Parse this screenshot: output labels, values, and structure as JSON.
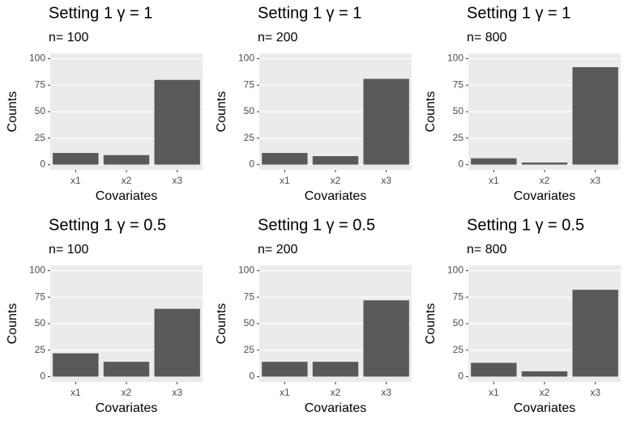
{
  "chart_data": [
    {
      "type": "bar",
      "title": "Setting 1 γ = 1",
      "subtitle": "n= 100",
      "x_label": "Covariates",
      "y_label": "Counts",
      "categories": [
        "x1",
        "x2",
        "x3"
      ],
      "values": [
        11,
        9,
        80
      ],
      "color": "#595959",
      "ylim": [
        -5,
        105
      ],
      "yticks": [
        0,
        25,
        50,
        75,
        100
      ],
      "grid": true
    },
    {
      "type": "bar",
      "title": "Setting 1 γ = 1",
      "subtitle": "n= 200",
      "x_label": "Covariates",
      "y_label": "Counts",
      "categories": [
        "x1",
        "x2",
        "x3"
      ],
      "values": [
        11,
        8,
        81
      ],
      "color": "#595959",
      "ylim": [
        -5,
        105
      ],
      "yticks": [
        0,
        25,
        50,
        75,
        100
      ],
      "grid": true
    },
    {
      "type": "bar",
      "title": "Setting 1 γ = 1",
      "subtitle": "n= 800",
      "x_label": "Covariates",
      "y_label": "Counts",
      "categories": [
        "x1",
        "x2",
        "x3"
      ],
      "values": [
        6,
        2,
        92
      ],
      "color": "#595959",
      "ylim": [
        -5,
        105
      ],
      "yticks": [
        0,
        25,
        50,
        75,
        100
      ],
      "grid": true
    },
    {
      "type": "bar",
      "title": "Setting 1 γ = 0.5",
      "subtitle": "n= 100",
      "x_label": "Covariates",
      "y_label": "Counts",
      "categories": [
        "x1",
        "x2",
        "x3"
      ],
      "values": [
        22,
        14,
        64
      ],
      "color": "#595959",
      "ylim": [
        -5,
        105
      ],
      "yticks": [
        0,
        25,
        50,
        75,
        100
      ],
      "grid": true
    },
    {
      "type": "bar",
      "title": "Setting 1 γ = 0.5",
      "subtitle": "n= 200",
      "x_label": "Covariates",
      "y_label": "Counts",
      "categories": [
        "x1",
        "x2",
        "x3"
      ],
      "values": [
        14,
        14,
        72
      ],
      "color": "#595959",
      "ylim": [
        -5,
        105
      ],
      "yticks": [
        0,
        25,
        50,
        75,
        100
      ],
      "grid": true
    },
    {
      "type": "bar",
      "title": "Setting 1 γ = 0.5",
      "subtitle": "n= 800",
      "x_label": "Covariates",
      "y_label": "Counts",
      "categories": [
        "x1",
        "x2",
        "x3"
      ],
      "values": [
        13,
        5,
        82
      ],
      "color": "#595959",
      "ylim": [
        -5,
        105
      ],
      "yticks": [
        0,
        25,
        50,
        75,
        100
      ],
      "grid": true
    }
  ]
}
